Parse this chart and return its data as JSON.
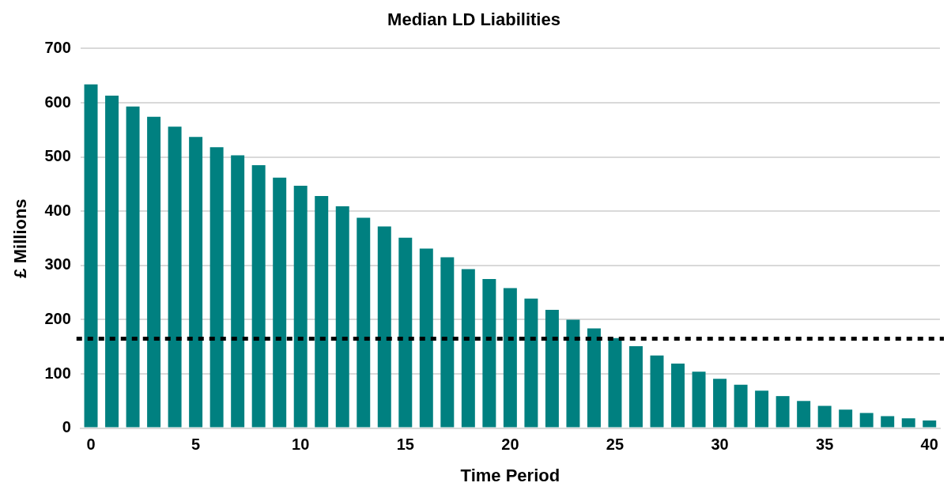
{
  "chart_data": {
    "type": "bar",
    "title": "Median LD Liabilities",
    "xlabel": "Time Period",
    "ylabel": "£ Millions",
    "categories": [
      "0",
      null,
      null,
      null,
      null,
      "5",
      null,
      null,
      null,
      null,
      "10",
      null,
      null,
      null,
      null,
      "15",
      null,
      null,
      null,
      null,
      "20",
      null,
      null,
      null,
      null,
      "25",
      null,
      null,
      null,
      null,
      "30",
      null,
      null,
      null,
      null,
      "35",
      null,
      null,
      null,
      null,
      "40"
    ],
    "values": [
      634,
      613,
      593,
      574,
      556,
      537,
      518,
      503,
      485,
      462,
      447,
      428,
      409,
      388,
      372,
      351,
      331,
      315,
      293,
      275,
      258,
      239,
      218,
      200,
      184,
      166,
      151,
      134,
      119,
      104,
      91,
      80,
      69,
      59,
      50,
      41,
      34,
      28,
      22,
      18,
      14
    ],
    "color": "#008080",
    "ylim": [
      0,
      700
    ],
    "yticks": [
      0,
      100,
      200,
      300,
      400,
      500,
      600,
      700
    ],
    "grid": "y",
    "legend": false,
    "ref_lines": [
      {
        "axis": "y",
        "value": 165,
        "color": "#000000",
        "line_style": "dotted"
      }
    ]
  }
}
